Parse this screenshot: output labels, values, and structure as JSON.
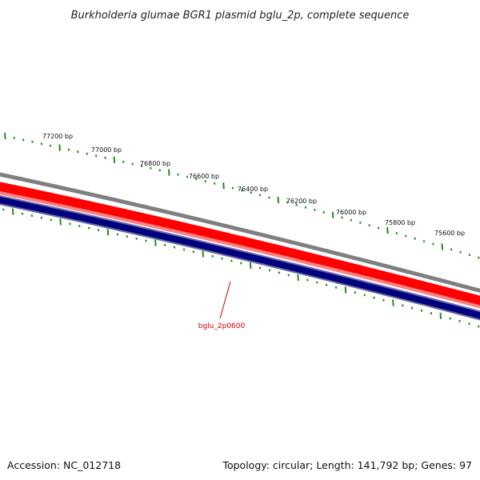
{
  "title": "Burkholderia glumae BGR1 plasmid bglu_2p, complete sequence",
  "accession": "Accession: NC_012718",
  "summary": "Topology: circular; Length: 141,792 bp; Genes: 97",
  "ruler": {
    "labels": [
      "77200 bp",
      "77000 bp",
      "76800 bp",
      "76600 bp",
      "76400 bp",
      "76200 bp",
      "76000 bp",
      "75800 bp",
      "75600 bp"
    ]
  },
  "gene_label": "bglu_2p0600",
  "colors": {
    "ring_outer": "#7f7f7f",
    "forward_cds": "#ff0000",
    "forward_cds_light": "#ff8080",
    "reverse_cds": "#00007f",
    "reverse_cds_edge": "#6a6aa8",
    "tick": "#228b22",
    "gene_line": "#cc0000"
  }
}
